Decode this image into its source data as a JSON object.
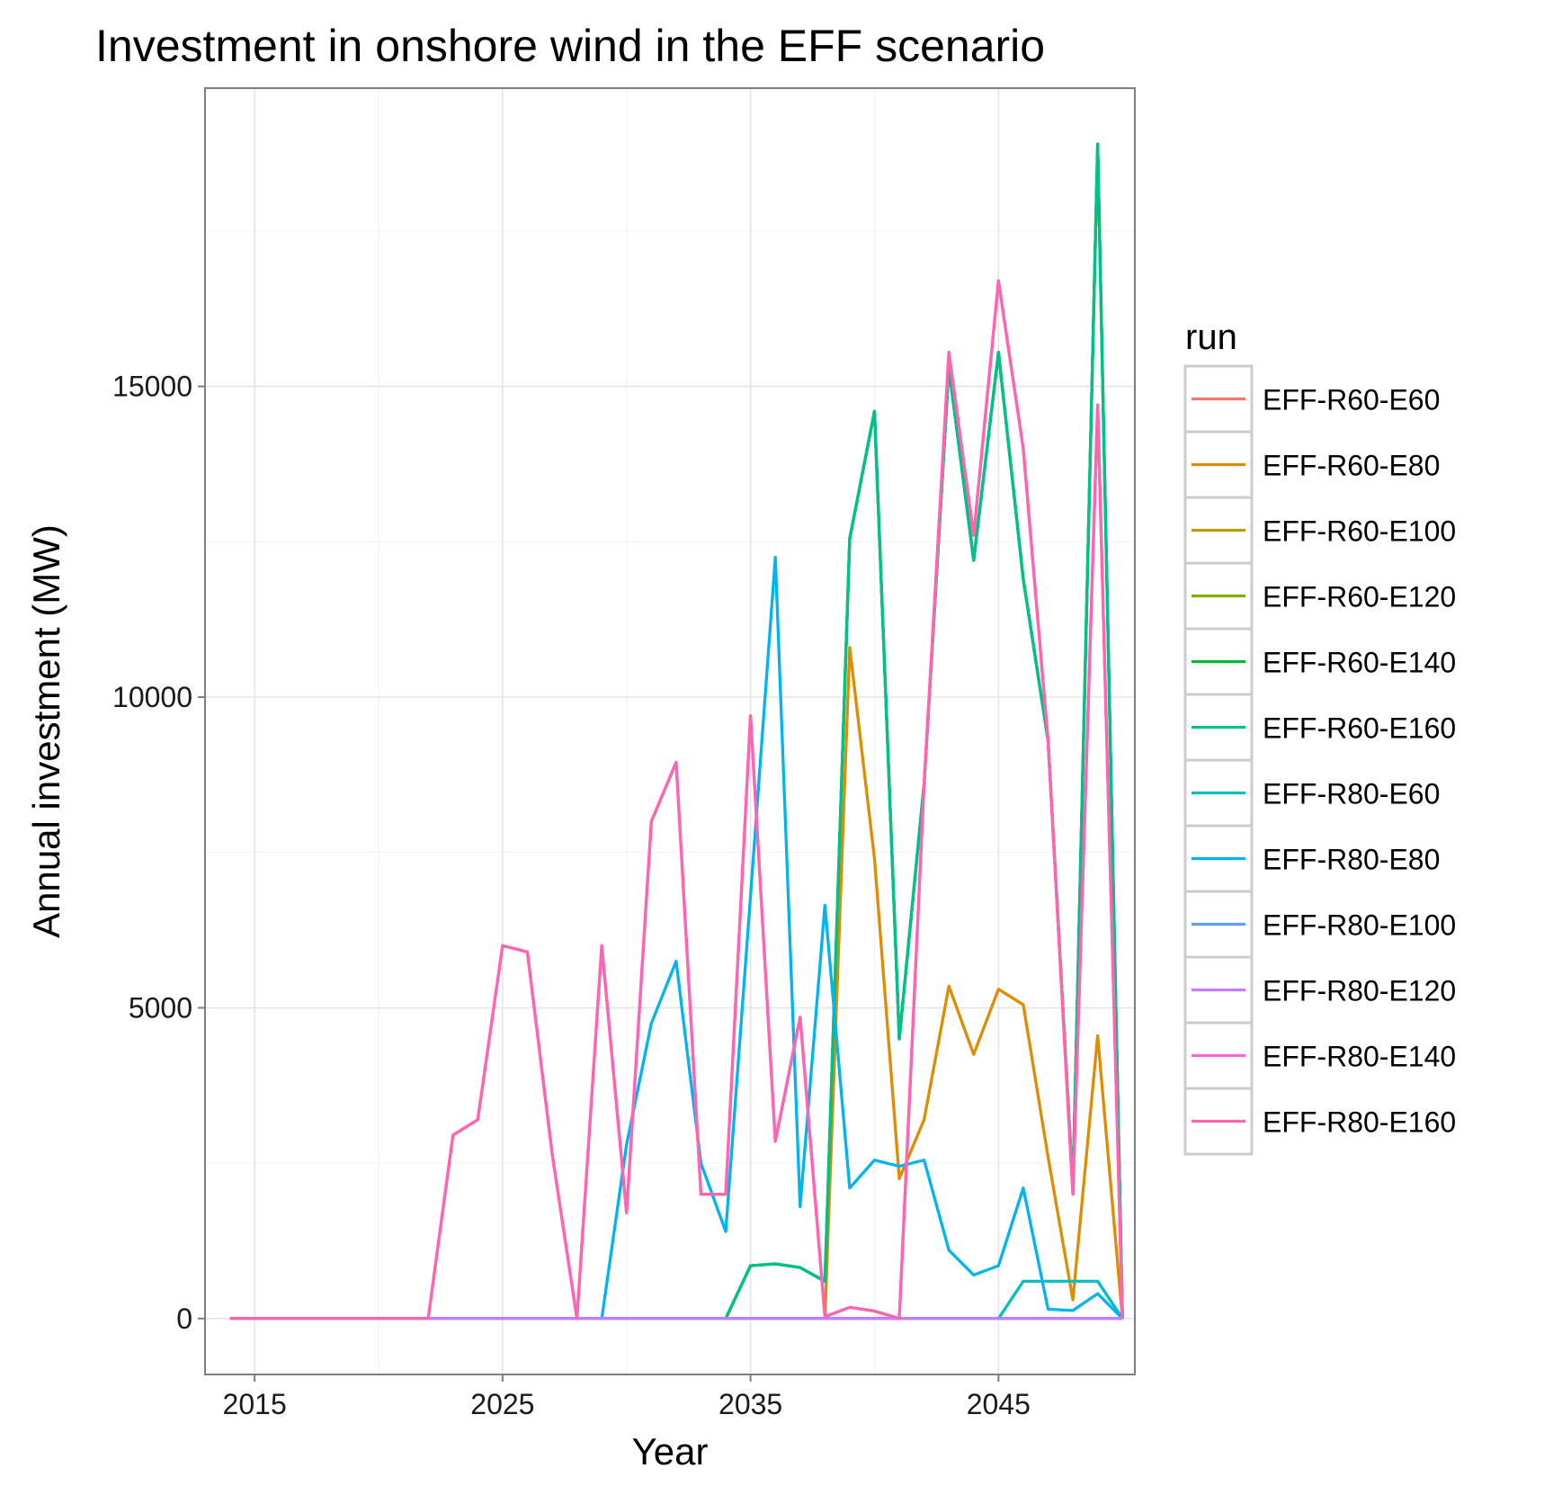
{
  "chart_data": {
    "type": "line",
    "title": "Investment in onshore wind in the EFF scenario",
    "xlabel": "Year",
    "ylabel": "Annual investment (MW)",
    "xlim": [
      2013,
      2050.5
    ],
    "ylim": [
      -900,
      19800
    ],
    "x_ticks": [
      2015,
      2025,
      2035,
      2045
    ],
    "y_ticks": [
      0,
      5000,
      10000,
      15000
    ],
    "grid": true,
    "legend": {
      "title": "run",
      "position": "right"
    },
    "x": [
      2014,
      2015,
      2016,
      2017,
      2018,
      2019,
      2020,
      2021,
      2022,
      2023,
      2024,
      2025,
      2026,
      2027,
      2028,
      2029,
      2030,
      2031,
      2032,
      2033,
      2034,
      2035,
      2036,
      2037,
      2038,
      2039,
      2040,
      2041,
      2042,
      2043,
      2044,
      2045,
      2046,
      2047,
      2048,
      2049,
      2050
    ],
    "series": [
      {
        "name": "EFF-R60-E60",
        "color": "#F8766D",
        "values": [
          0,
          0,
          0,
          0,
          0,
          0,
          0,
          0,
          0,
          0,
          0,
          0,
          0,
          0,
          0,
          0,
          0,
          0,
          0,
          0,
          0,
          0,
          0,
          0,
          0,
          0,
          0,
          0,
          0,
          0,
          0,
          0,
          0,
          0,
          0,
          0,
          0
        ]
      },
      {
        "name": "EFF-R60-E80",
        "color": "#DE8C00",
        "values": [
          0,
          0,
          0,
          0,
          0,
          0,
          0,
          0,
          0,
          0,
          0,
          0,
          0,
          0,
          0,
          0,
          0,
          0,
          0,
          0,
          0,
          0,
          0,
          0,
          0,
          10800,
          7400,
          2250,
          3200,
          5350,
          4250,
          5300,
          5050,
          2600,
          300,
          4550,
          0
        ]
      },
      {
        "name": "EFF-R60-E100",
        "color": "#B79F00",
        "values": [
          0,
          0,
          0,
          0,
          0,
          0,
          0,
          0,
          0,
          0,
          0,
          0,
          0,
          0,
          0,
          0,
          0,
          0,
          0,
          0,
          0,
          0,
          0,
          0,
          0,
          0,
          0,
          0,
          0,
          0,
          0,
          0,
          0,
          0,
          0,
          0,
          0
        ]
      },
      {
        "name": "EFF-R60-E120",
        "color": "#7CAE00",
        "values": [
          0,
          0,
          0,
          0,
          0,
          0,
          0,
          0,
          0,
          0,
          0,
          0,
          0,
          0,
          0,
          0,
          0,
          0,
          0,
          0,
          0,
          850,
          880,
          820,
          600,
          12550,
          14600,
          4500,
          8600,
          15300,
          12200,
          15550,
          11900,
          9300,
          2100,
          18900,
          0
        ]
      },
      {
        "name": "EFF-R60-E140",
        "color": "#00BA38",
        "values": [
          0,
          0,
          0,
          0,
          0,
          0,
          0,
          0,
          0,
          0,
          0,
          0,
          0,
          0,
          0,
          0,
          0,
          0,
          0,
          0,
          0,
          850,
          880,
          820,
          600,
          12550,
          14600,
          4500,
          8600,
          15300,
          12200,
          15550,
          11900,
          9300,
          2100,
          18900,
          0
        ]
      },
      {
        "name": "EFF-R60-E160",
        "color": "#00C08B",
        "values": [
          0,
          0,
          0,
          0,
          0,
          0,
          0,
          0,
          0,
          0,
          0,
          0,
          0,
          0,
          0,
          0,
          0,
          0,
          0,
          0,
          0,
          850,
          880,
          820,
          600,
          12550,
          14600,
          4500,
          8600,
          15300,
          12200,
          15550,
          11900,
          9300,
          2100,
          18900,
          0
        ]
      },
      {
        "name": "EFF-R80-E60",
        "color": "#00BFC4",
        "values": [
          0,
          0,
          0,
          0,
          0,
          0,
          0,
          0,
          0,
          0,
          0,
          0,
          0,
          0,
          0,
          0,
          0,
          0,
          0,
          0,
          0,
          0,
          0,
          0,
          0,
          0,
          0,
          0,
          0,
          0,
          0,
          0,
          600,
          600,
          600,
          600,
          0
        ]
      },
      {
        "name": "EFF-R80-E80",
        "color": "#00B4F0",
        "values": [
          0,
          0,
          0,
          0,
          0,
          0,
          0,
          0,
          0,
          0,
          0,
          0,
          0,
          0,
          0,
          0,
          2800,
          4750,
          5750,
          2500,
          1400,
          6800,
          12250,
          1800,
          6650,
          2100,
          2550,
          2450,
          2550,
          1100,
          700,
          850,
          2100,
          150,
          130,
          400,
          0
        ]
      },
      {
        "name": "EFF-R80-E100",
        "color": "#619CFF",
        "values": [
          0,
          0,
          0,
          0,
          0,
          0,
          0,
          0,
          0,
          0,
          0,
          0,
          0,
          0,
          0,
          0,
          0,
          0,
          0,
          0,
          0,
          0,
          0,
          0,
          0,
          0,
          0,
          0,
          0,
          0,
          0,
          0,
          0,
          0,
          0,
          0,
          0
        ]
      },
      {
        "name": "EFF-R80-E120",
        "color": "#C77CFF",
        "values": [
          0,
          0,
          0,
          0,
          0,
          0,
          0,
          0,
          0,
          0,
          0,
          0,
          0,
          0,
          0,
          0,
          0,
          0,
          0,
          0,
          0,
          0,
          0,
          0,
          0,
          0,
          0,
          0,
          0,
          0,
          0,
          0,
          0,
          0,
          0,
          0,
          0
        ]
      },
      {
        "name": "EFF-R80-E140",
        "color": "#F564E3",
        "values": [
          0,
          0,
          0,
          0,
          0,
          0,
          0,
          0,
          0,
          2950,
          3200,
          6000,
          5900,
          2650,
          0,
          6000,
          1700,
          8000,
          8950,
          2000,
          2000,
          9700,
          2850,
          4850,
          30,
          180,
          120,
          0,
          8600,
          15550,
          12600,
          16700,
          14000,
          9300,
          2000,
          14700,
          0
        ]
      },
      {
        "name": "EFF-R80-E160",
        "color": "#FF64B0",
        "values": [
          0,
          0,
          0,
          0,
          0,
          0,
          0,
          0,
          0,
          2950,
          3200,
          6000,
          5900,
          2650,
          0,
          6000,
          1700,
          8000,
          8950,
          2000,
          2000,
          9700,
          2850,
          4850,
          30,
          180,
          120,
          0,
          8600,
          15550,
          12600,
          16700,
          14000,
          9300,
          2000,
          14700,
          0
        ]
      }
    ]
  }
}
